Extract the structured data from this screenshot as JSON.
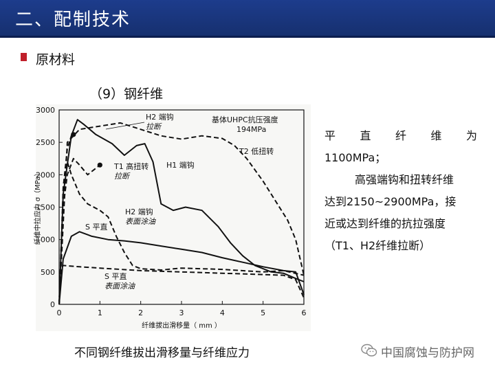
{
  "header": {
    "title": "二、配制技术"
  },
  "section": {
    "label": "原材料"
  },
  "subtitle": "（9）钢纤维",
  "figure": {
    "caption": "不同钢纤维拔出滑移量与纤维应力",
    "chart_data": {
      "type": "line",
      "xlabel": "纤维拔出滑移量（ mm ）",
      "ylabel": "纤维中拉应力 σ（MPa）",
      "xlim": [
        0,
        6
      ],
      "ylim": [
        0,
        3000
      ],
      "x_ticks": [
        "0",
        "1",
        "2",
        "3",
        "4",
        "5",
        "6"
      ],
      "y_ticks": [
        "0",
        "500",
        "1000",
        "1500",
        "2000",
        "2500",
        "3000"
      ],
      "annotations": [
        {
          "id": "h2_break",
          "text": "H2 端钩",
          "text2": "拉断"
        },
        {
          "id": "uhpc",
          "text": "基体UHPC抗压强度",
          "text2": "194MPa"
        },
        {
          "id": "t2",
          "text": "T2 低扭转"
        },
        {
          "id": "h1",
          "text": "H1 端钩"
        },
        {
          "id": "t1",
          "text": "T1 高扭转",
          "text2": "拉断"
        },
        {
          "id": "h2_coat",
          "text": "H2 端钩",
          "text2": "表面涂油"
        },
        {
          "id": "s_straight",
          "text": "S 平直"
        },
        {
          "id": "s_coat",
          "text": "S 平直",
          "text2": "表面涂油"
        }
      ],
      "series": [
        {
          "id": "H1",
          "style": "solid",
          "x": [
            0,
            0.1,
            0.3,
            0.45,
            0.6,
            0.9,
            1.3,
            1.6,
            1.9,
            2.1,
            2.3,
            2.5,
            2.8,
            3.1,
            3.5,
            3.9,
            4.2,
            4.5,
            4.8,
            5.2,
            5.5,
            5.8,
            6.0
          ],
          "y": [
            0,
            1700,
            2600,
            2850,
            2780,
            2620,
            2480,
            2300,
            2450,
            2480,
            2200,
            1550,
            1450,
            1500,
            1450,
            1200,
            950,
            750,
            600,
            500,
            480,
            400,
            350
          ]
        },
        {
          "id": "T2",
          "style": "dashed",
          "x": [
            0,
            0.2,
            0.5,
            1.0,
            1.5,
            2.0,
            2.5,
            3.0,
            3.5,
            4.0,
            4.3,
            4.6,
            5.0,
            5.3,
            5.6,
            5.8,
            6.0
          ],
          "y": [
            0,
            2500,
            2700,
            2750,
            2800,
            2700,
            2600,
            2550,
            2600,
            2560,
            2450,
            2250,
            1900,
            1600,
            1300,
            1000,
            450
          ]
        },
        {
          "id": "H2_break",
          "style": "dashed",
          "x": [
            0,
            0.1,
            0.2,
            0.3,
            0.35
          ],
          "y": [
            0,
            1800,
            2400,
            2600,
            2620
          ]
        },
        {
          "id": "T1",
          "style": "dashed",
          "x": [
            0,
            0.1,
            0.2,
            0.35,
            0.5,
            0.7,
            0.9,
            1.0
          ],
          "y": [
            0,
            1500,
            2000,
            2250,
            2150,
            2000,
            2100,
            2150
          ]
        },
        {
          "id": "H2_coat",
          "style": "dashed",
          "x": [
            0,
            0.1,
            0.2,
            0.3,
            0.5,
            0.7,
            1.0,
            1.2,
            1.4,
            1.6,
            1.8,
            2.0,
            2.5,
            3.0,
            4.0,
            5.0,
            5.5,
            6.0
          ],
          "y": [
            0,
            1700,
            2200,
            2000,
            1700,
            1550,
            1450,
            1350,
            1050,
            800,
            600,
            550,
            530,
            560,
            540,
            500,
            520,
            450
          ]
        },
        {
          "id": "S",
          "style": "solid",
          "x": [
            0,
            0.1,
            0.3,
            0.5,
            0.8,
            1.2,
            1.6,
            2.0,
            2.5,
            3.0,
            3.5,
            4.0,
            4.5,
            5.0,
            5.5,
            5.8,
            6.0
          ],
          "y": [
            0,
            700,
            1050,
            1120,
            1050,
            1000,
            980,
            950,
            900,
            850,
            800,
            720,
            650,
            580,
            520,
            500,
            150
          ]
        },
        {
          "id": "S_coat",
          "style": "dashed",
          "x": [
            0,
            0.05,
            0.1,
            0.5,
            1.0,
            2.0,
            3.0,
            4.0,
            5.0,
            5.5,
            5.8,
            6.0
          ],
          "y": [
            0,
            550,
            600,
            580,
            560,
            520,
            500,
            480,
            460,
            450,
            380,
            100
          ]
        }
      ]
    }
  },
  "desc": {
    "line1": "平直纤维为",
    "line2": "1100MPa；",
    "line3": "高强端钩和扭转纤维",
    "line4": "达到2150~2900MPa，接",
    "line5": "近或达到纤维的抗拉强度",
    "line6": "（T1、H2纤维拉断）"
  },
  "footer": {
    "logo_text": "中国腐蚀与防护网"
  },
  "colors": {
    "header_bg": "#1a3580",
    "bullet": "#c01f2a",
    "plot_line": "#111111"
  }
}
